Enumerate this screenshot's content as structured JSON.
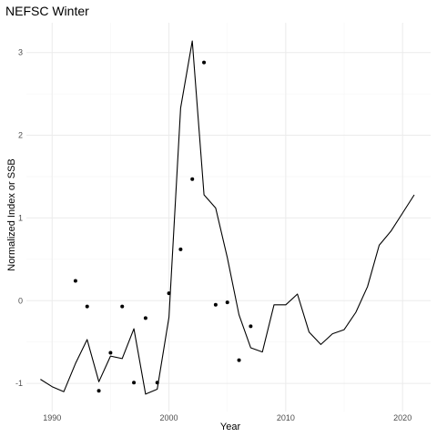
{
  "chart_data": {
    "type": "line",
    "title": "NEFSC Winter",
    "xlabel": "Year",
    "ylabel": "Normalized Index or SSB",
    "xlim": [
      1987.8,
      2022.4
    ],
    "ylim": [
      -1.34,
      3.36
    ],
    "x_ticks": [
      1990,
      2000,
      2010,
      2020
    ],
    "x_tick_labels": [
      "1990",
      "2000",
      "2010",
      "2020"
    ],
    "y_ticks": [
      -1,
      0,
      1,
      2,
      3
    ],
    "y_tick_labels": [
      "-1",
      "0",
      "1",
      "2",
      "3"
    ],
    "grid": true,
    "series": [
      {
        "kind": "line",
        "color": "#000000",
        "x": [
          1989,
          1990,
          1991,
          1992,
          1993,
          1994,
          1995,
          1996,
          1997,
          1998,
          1999,
          2000,
          2001,
          2002,
          2003,
          2004,
          2005,
          2006,
          2007,
          2008,
          2009,
          2010,
          2011,
          2012,
          2013,
          2014,
          2015,
          2016,
          2017,
          2018,
          2019,
          2020,
          2021
        ],
        "y": [
          -0.95,
          -1.04,
          -1.1,
          -0.76,
          -0.47,
          -0.98,
          -0.67,
          -0.7,
          -0.34,
          -1.13,
          -1.07,
          -0.2,
          2.33,
          3.14,
          1.28,
          1.12,
          0.52,
          -0.17,
          -0.57,
          -0.62,
          -0.05,
          -0.05,
          0.08,
          -0.38,
          -0.53,
          -0.4,
          -0.35,
          -0.14,
          0.17,
          0.67,
          0.84,
          1.06,
          1.28
        ]
      },
      {
        "kind": "points",
        "color": "#000000",
        "x": [
          1992,
          1993,
          1994,
          1995,
          1996,
          1997,
          1998,
          1999,
          2000,
          2001,
          2002,
          2003,
          2004,
          2005,
          2006,
          2007
        ],
        "y": [
          0.24,
          -0.07,
          -1.09,
          -0.63,
          -0.07,
          -0.99,
          -0.21,
          -0.99,
          0.09,
          0.62,
          1.47,
          2.88,
          -0.05,
          -0.02,
          -0.72,
          -0.31
        ]
      }
    ]
  }
}
